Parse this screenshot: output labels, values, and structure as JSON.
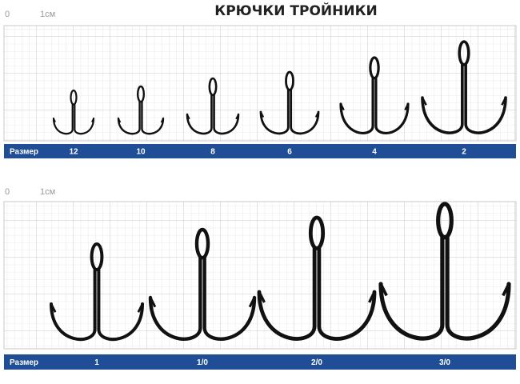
{
  "title": "КРЮЧКИ ТРОЙНИКИ",
  "panels": [
    {
      "scale_start": "0",
      "scale_unit": "1см",
      "size_label": "Размер",
      "sizes": [
        "12",
        "10",
        "8",
        "6",
        "4",
        "2"
      ]
    },
    {
      "scale_start": "0",
      "scale_unit": "1см",
      "size_label": "Размер",
      "sizes": [
        "1",
        "1/0",
        "2/0",
        "3/0"
      ]
    }
  ]
}
